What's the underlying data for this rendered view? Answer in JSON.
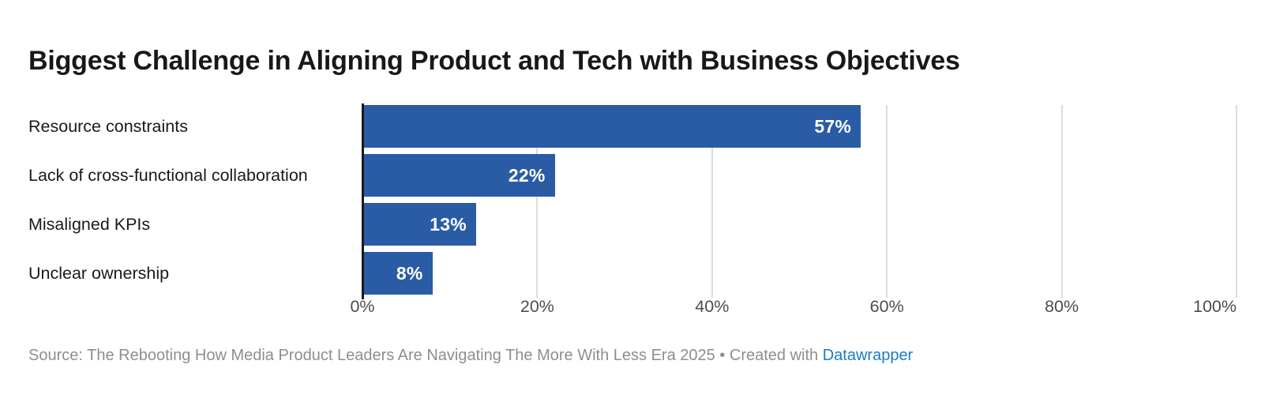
{
  "title": "Biggest Challenge in Aligning Product and Tech with Business Objectives",
  "chart_data": {
    "type": "bar",
    "orientation": "horizontal",
    "title": "Biggest Challenge in Aligning Product and Tech with Business Objectives",
    "categories": [
      "Resource constraints",
      "Lack of cross-functional collaboration",
      "Misaligned KPIs",
      "Unclear ownership"
    ],
    "values": [
      57,
      22,
      13,
      8
    ],
    "value_labels": [
      "57%",
      "22%",
      "13%",
      "8%"
    ],
    "xlabel": "",
    "ylabel": "",
    "xlim": [
      0,
      100
    ],
    "x_ticks": [
      {
        "value": 0,
        "label": "0%"
      },
      {
        "value": 20,
        "label": "20%"
      },
      {
        "value": 40,
        "label": "40%"
      },
      {
        "value": 60,
        "label": "60%"
      },
      {
        "value": 80,
        "label": "80%"
      },
      {
        "value": 100,
        "label": "100%"
      }
    ],
    "grid": "vertical-gridlines-on",
    "legend": "none",
    "bar_color": "#2a5ca6",
    "value_label_color": "#ffffff"
  },
  "footer": {
    "source_text": "Source: The Rebooting How Media Product Leaders Are Navigating The More With Less Era 2025",
    "separator": " • ",
    "created_with": "Created with ",
    "link_label": "Datawrapper",
    "link_color": "#1d7cc2"
  },
  "colors": {
    "background": "#ffffff",
    "title": "#181818",
    "category_label": "#1a1a1a",
    "tick_label": "#4d4d4d",
    "gridline": "#dcdcdc",
    "axis_line": "#1a1a1a",
    "source_text": "#8e8e8e"
  }
}
